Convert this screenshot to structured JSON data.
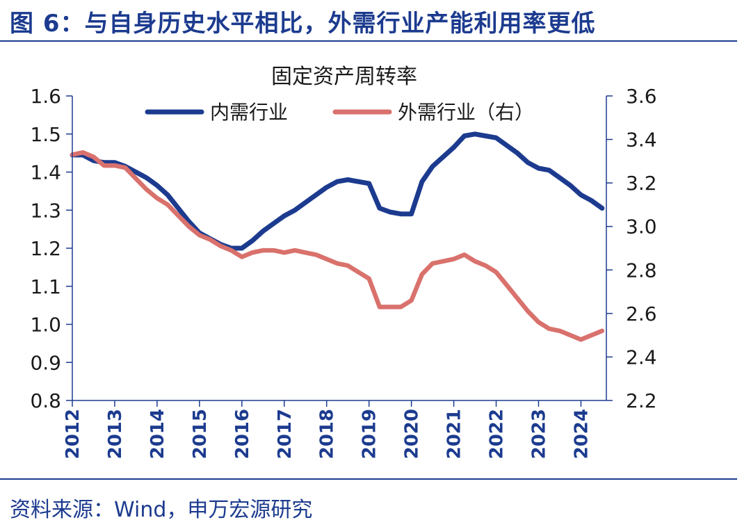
{
  "figure": {
    "title": "图 6：与自身历史水平相比，外需行业产能利用率更低",
    "source": "资料来源：Wind，申万宏源研究"
  },
  "colors": {
    "heading": "#1c3b8f",
    "axis": "#1c3b8f",
    "domestic": "#1c3b8f",
    "external": "#d9716c"
  },
  "chart_data": {
    "type": "line",
    "title": "固定资产周转率",
    "legend_placement": "top-center",
    "grid": false,
    "x_range": [
      2012.0,
      2024.6
    ],
    "x_ticks": [
      "2012",
      "2013",
      "2014",
      "2015",
      "2016",
      "2017",
      "2018",
      "2019",
      "2020",
      "2021",
      "2022",
      "2023",
      "2024"
    ],
    "y_left": {
      "range": [
        0.8,
        1.6
      ],
      "ticks": [
        "0.8",
        "0.9",
        "1.0",
        "1.1",
        "1.2",
        "1.3",
        "1.4",
        "1.5",
        "1.6"
      ]
    },
    "y_right": {
      "range": [
        2.2,
        3.6
      ],
      "ticks": [
        "2.2",
        "2.4",
        "2.6",
        "2.8",
        "3.0",
        "3.2",
        "3.4",
        "3.6"
      ]
    },
    "series": [
      {
        "name": "内需行业",
        "axis": "left",
        "color": "#1c3b8f",
        "x": [
          2012.0,
          2012.25,
          2012.5,
          2012.75,
          2013.0,
          2013.25,
          2013.5,
          2013.75,
          2014.0,
          2014.25,
          2014.5,
          2014.75,
          2015.0,
          2015.25,
          2015.5,
          2015.75,
          2016.0,
          2016.25,
          2016.5,
          2016.75,
          2017.0,
          2017.25,
          2017.5,
          2017.75,
          2018.0,
          2018.25,
          2018.5,
          2018.75,
          2019.0,
          2019.25,
          2019.5,
          2019.75,
          2020.0,
          2020.25,
          2020.5,
          2020.75,
          2021.0,
          2021.25,
          2021.5,
          2021.75,
          2022.0,
          2022.25,
          2022.5,
          2022.75,
          2023.0,
          2023.25,
          2023.5,
          2023.75,
          2024.0,
          2024.25,
          2024.5
        ],
        "y": [
          1.445,
          1.445,
          1.43,
          1.425,
          1.425,
          1.415,
          1.4,
          1.385,
          1.365,
          1.34,
          1.305,
          1.27,
          1.24,
          1.225,
          1.21,
          1.2,
          1.2,
          1.22,
          1.245,
          1.265,
          1.285,
          1.3,
          1.32,
          1.34,
          1.36,
          1.375,
          1.38,
          1.375,
          1.37,
          1.305,
          1.295,
          1.29,
          1.29,
          1.375,
          1.415,
          1.44,
          1.465,
          1.495,
          1.5,
          1.495,
          1.49,
          1.47,
          1.45,
          1.425,
          1.41,
          1.405,
          1.385,
          1.365,
          1.34,
          1.325,
          1.305
        ]
      },
      {
        "name": "外需行业（右）",
        "axis": "right",
        "color": "#d9716c",
        "x": [
          2012.0,
          2012.25,
          2012.5,
          2012.75,
          2013.0,
          2013.25,
          2013.5,
          2013.75,
          2014.0,
          2014.25,
          2014.5,
          2014.75,
          2015.0,
          2015.25,
          2015.5,
          2015.75,
          2016.0,
          2016.25,
          2016.5,
          2016.75,
          2017.0,
          2017.25,
          2017.5,
          2017.75,
          2018.0,
          2018.25,
          2018.5,
          2018.75,
          2019.0,
          2019.25,
          2019.5,
          2019.75,
          2020.0,
          2020.25,
          2020.5,
          2020.75,
          2021.0,
          2021.25,
          2021.5,
          2021.75,
          2022.0,
          2022.25,
          2022.5,
          2022.75,
          2023.0,
          2023.25,
          2023.5,
          2023.75,
          2024.0,
          2024.25,
          2024.5
        ],
        "y": [
          3.33,
          3.34,
          3.32,
          3.28,
          3.28,
          3.27,
          3.22,
          3.17,
          3.13,
          3.1,
          3.05,
          3.0,
          2.96,
          2.94,
          2.91,
          2.89,
          2.86,
          2.88,
          2.89,
          2.89,
          2.88,
          2.89,
          2.88,
          2.87,
          2.85,
          2.83,
          2.82,
          2.79,
          2.76,
          2.63,
          2.63,
          2.63,
          2.66,
          2.78,
          2.83,
          2.84,
          2.85,
          2.87,
          2.84,
          2.82,
          2.79,
          2.73,
          2.67,
          2.61,
          2.56,
          2.53,
          2.52,
          2.5,
          2.48,
          2.5,
          2.52
        ]
      }
    ]
  }
}
